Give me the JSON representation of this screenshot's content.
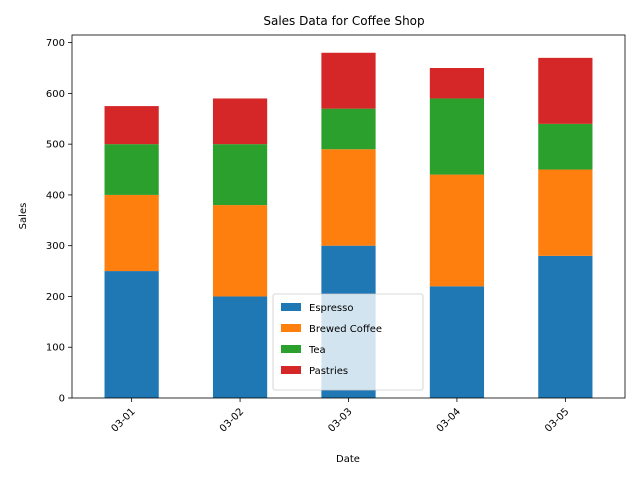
{
  "chart_data": {
    "type": "bar",
    "stacked": true,
    "title": "Sales Data for Coffee Shop",
    "xlabel": "Date",
    "ylabel": "Sales",
    "categories": [
      "03-01",
      "03-02",
      "03-03",
      "03-04",
      "03-05"
    ],
    "series": [
      {
        "name": "Espresso",
        "color": "#1f77b4",
        "values": [
          250,
          200,
          300,
          220,
          280
        ]
      },
      {
        "name": "Brewed Coffee",
        "color": "#ff7f0e",
        "values": [
          150,
          180,
          190,
          220,
          170
        ]
      },
      {
        "name": "Tea",
        "color": "#2ca02c",
        "values": [
          100,
          120,
          80,
          150,
          90
        ]
      },
      {
        "name": "Pastries",
        "color": "#d62728",
        "values": [
          75,
          90,
          110,
          60,
          130
        ]
      }
    ],
    "ylim": [
      0,
      715
    ],
    "yticks": [
      0,
      100,
      200,
      300,
      400,
      500,
      600,
      700
    ],
    "grid": false,
    "legend_position": "lower-center"
  }
}
